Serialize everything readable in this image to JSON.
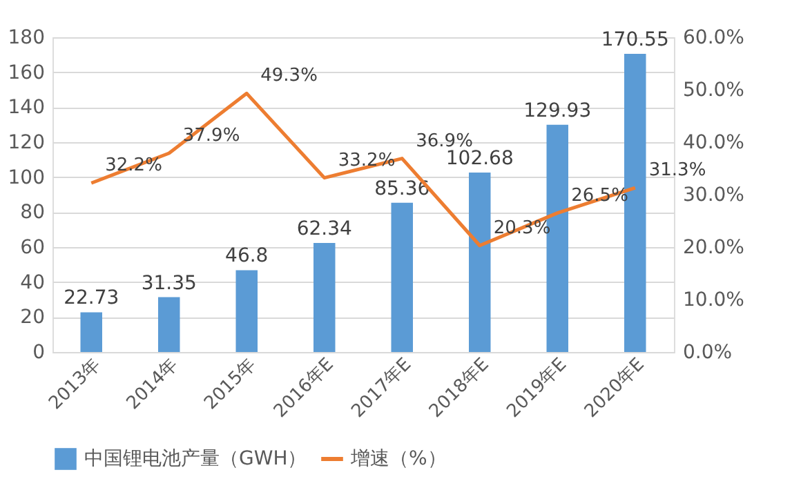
{
  "chart_data": {
    "type": "bar",
    "categories": [
      "2013年",
      "2014年",
      "2015年",
      "2016年E",
      "2017年E",
      "2018年E",
      "2019年E",
      "2020年E"
    ],
    "series": [
      {
        "name": "中国锂电池产量（GWH）",
        "color": "#5b9bd5",
        "values": [
          22.73,
          31.35,
          46.8,
          62.34,
          85.36,
          102.68,
          129.93,
          170.55
        ]
      },
      {
        "name": "增速（%）",
        "type": "line",
        "axis": "y2",
        "color": "#ed7d31",
        "values": [
          32.2,
          37.9,
          49.3,
          33.2,
          36.9,
          20.3,
          26.5,
          31.3
        ],
        "value_labels": [
          "32.2%",
          "37.9%",
          "49.3%",
          "33.2%",
          "36.9%",
          "20.3%",
          "26.5%",
          "31.3%"
        ]
      }
    ],
    "data_labels": true,
    "ylim": [
      0,
      180
    ],
    "yticks": [
      0,
      20,
      40,
      60,
      80,
      100,
      120,
      140,
      160,
      180
    ],
    "y2lim": [
      0,
      60
    ],
    "y2ticks": [
      {
        "value": 0,
        "label": "0.0%"
      },
      {
        "value": 10,
        "label": "10.0%"
      },
      {
        "value": 20,
        "label": "20.0%"
      },
      {
        "value": 30,
        "label": "30.0%"
      },
      {
        "value": 40,
        "label": "40.0%"
      },
      {
        "value": 50,
        "label": "50.0%"
      },
      {
        "value": 60,
        "label": "60.0%"
      }
    ],
    "grid": "y",
    "legend": "bottom",
    "marker": "none",
    "line_style": "solid"
  }
}
